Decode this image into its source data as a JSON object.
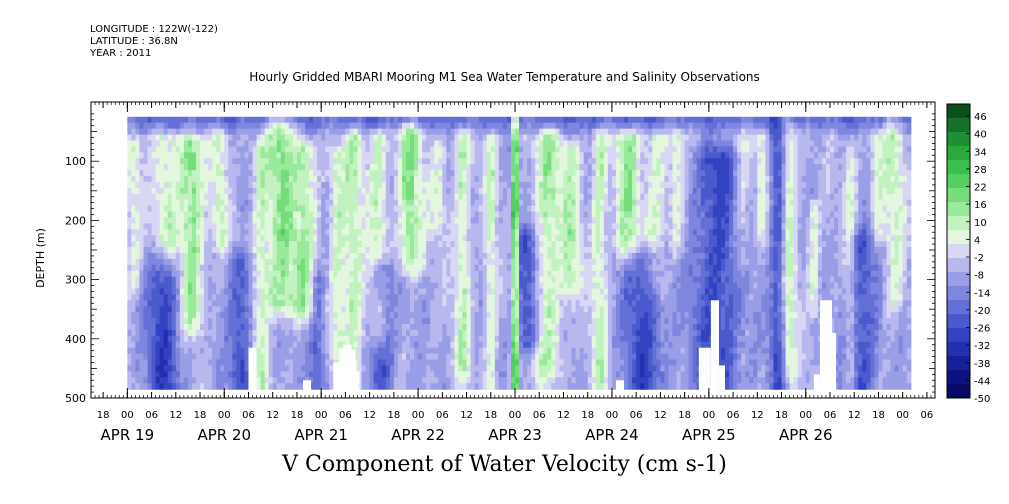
{
  "header": {
    "longitude": "LONGITUDE : 122W(-122)",
    "latitude": "LATITUDE : 36.8N",
    "year": "YEAR : 2011",
    "title": "Hourly Gridded MBARI Mooring M1 Sea Water Temperature and Salinity Observations"
  },
  "chart_data": {
    "type": "heatmap",
    "title": "Hourly Gridded MBARI Mooring M1 Sea Water Temperature and Salinity Observations",
    "xlabel": "V Component of Water Velocity (cm s-1)",
    "ylabel": "DEPTH (m)",
    "x_unit": "hours since APR 19 00",
    "xlim": [
      -9,
      200
    ],
    "data_xlim": [
      0,
      194
    ],
    "ylim": [
      0,
      500
    ],
    "data_ylim": [
      25,
      485
    ],
    "y_ticks": [
      100,
      200,
      300,
      400,
      500
    ],
    "x_tick_labels": [
      {
        "h": -6,
        "label": "18"
      },
      {
        "h": 0,
        "label": "00"
      },
      {
        "h": 6,
        "label": "06"
      },
      {
        "h": 12,
        "label": "12"
      },
      {
        "h": 18,
        "label": "18"
      },
      {
        "h": 24,
        "label": "00"
      },
      {
        "h": 30,
        "label": "06"
      },
      {
        "h": 36,
        "label": "12"
      },
      {
        "h": 42,
        "label": "18"
      },
      {
        "h": 48,
        "label": "00"
      },
      {
        "h": 54,
        "label": "06"
      },
      {
        "h": 60,
        "label": "12"
      },
      {
        "h": 66,
        "label": "18"
      },
      {
        "h": 72,
        "label": "00"
      },
      {
        "h": 78,
        "label": "06"
      },
      {
        "h": 84,
        "label": "12"
      },
      {
        "h": 90,
        "label": "18"
      },
      {
        "h": 96,
        "label": "00"
      },
      {
        "h": 102,
        "label": "06"
      },
      {
        "h": 108,
        "label": "12"
      },
      {
        "h": 114,
        "label": "18"
      },
      {
        "h": 120,
        "label": "00"
      },
      {
        "h": 126,
        "label": "06"
      },
      {
        "h": 132,
        "label": "12"
      },
      {
        "h": 138,
        "label": "18"
      },
      {
        "h": 144,
        "label": "00"
      },
      {
        "h": 150,
        "label": "06"
      },
      {
        "h": 156,
        "label": "12"
      },
      {
        "h": 162,
        "label": "18"
      },
      {
        "h": 168,
        "label": "00"
      },
      {
        "h": 174,
        "label": "06"
      },
      {
        "h": 180,
        "label": "12"
      },
      {
        "h": 186,
        "label": "18"
      },
      {
        "h": 192,
        "label": "00"
      },
      {
        "h": 198,
        "label": "06"
      }
    ],
    "x_tick_labels_override": [
      {
        "h": 162,
        "label": "18"
      },
      {
        "h": 168,
        "label": "00"
      },
      {
        "h": 174,
        "label": "06"
      },
      {
        "h": 180,
        "label": "12"
      }
    ],
    "date_labels": [
      {
        "h": 0,
        "label": "APR 19"
      },
      {
        "h": 24,
        "label": "APR 20"
      },
      {
        "h": 48,
        "label": "APR 21"
      },
      {
        "h": 72,
        "label": "APR 22"
      },
      {
        "h": 96,
        "label": "APR 23"
      },
      {
        "h": 120,
        "label": "APR 24"
      },
      {
        "h": 144,
        "label": "APR 25"
      },
      {
        "h": 168,
        "label": "APR 26"
      }
    ],
    "colorbar": {
      "min": -50,
      "max": 50,
      "labels": [
        "46",
        "40",
        "34",
        "28",
        "22",
        "16",
        "10",
        "4",
        "-2",
        "-8",
        "-14",
        "-20",
        "-26",
        "-32",
        "-38",
        "-44",
        "-50"
      ],
      "colors": [
        "#0b4f1c",
        "#16702a",
        "#1f8f35",
        "#2aaa3d",
        "#3cbe4c",
        "#56cf62",
        "#76dd7c",
        "#9ae99c",
        "#c2f2c0",
        "#e3f7df",
        "#d8d8f4",
        "#b8b8ee",
        "#9a9ee6",
        "#7e86de",
        "#6470d6",
        "#4a5acc",
        "#3242c0",
        "#2230ae",
        "#16209a",
        "#0c1282",
        "#060a66"
      ]
    },
    "green_bands": [
      {
        "h": 1.5,
        "w": 2.0,
        "amp": 12,
        "top": 80,
        "bottom": 300
      },
      {
        "h": 10,
        "w": 3.5,
        "amp": 14,
        "top": 60,
        "bottom": 260
      },
      {
        "h": 16,
        "w": 3.0,
        "amp": 22,
        "top": 70,
        "bottom": 360
      },
      {
        "h": 23,
        "w": 2.0,
        "amp": 14,
        "top": 60,
        "bottom": 220
      },
      {
        "h": 33,
        "w": 2.0,
        "amp": 14,
        "top": 80,
        "bottom": 480
      },
      {
        "h": 38,
        "w": 3.5,
        "amp": 22,
        "top": 40,
        "bottom": 330
      },
      {
        "h": 44,
        "w": 3.0,
        "amp": 18,
        "top": 80,
        "bottom": 340
      },
      {
        "h": 52,
        "w": 2.0,
        "amp": 14,
        "top": 90,
        "bottom": 420
      },
      {
        "h": 56,
        "w": 2.5,
        "amp": 16,
        "top": 60,
        "bottom": 460
      },
      {
        "h": 62,
        "w": 2.5,
        "amp": 16,
        "top": 60,
        "bottom": 380
      },
      {
        "h": 70,
        "w": 3.0,
        "amp": 22,
        "top": 50,
        "bottom": 260
      },
      {
        "h": 77,
        "w": 2.0,
        "amp": 12,
        "top": 80,
        "bottom": 200
      },
      {
        "h": 83,
        "w": 2.0,
        "amp": 16,
        "top": 60,
        "bottom": 440
      },
      {
        "h": 90,
        "w": 1.5,
        "amp": 14,
        "top": 70,
        "bottom": 480
      },
      {
        "h": 96,
        "w": 0.7,
        "amp": 46,
        "top": 30,
        "bottom": 485
      },
      {
        "h": 104,
        "w": 3.5,
        "amp": 18,
        "top": 60,
        "bottom": 440
      },
      {
        "h": 110,
        "w": 2.5,
        "amp": 16,
        "top": 80,
        "bottom": 300
      },
      {
        "h": 117,
        "w": 2.0,
        "amp": 16,
        "top": 60,
        "bottom": 480
      },
      {
        "h": 124,
        "w": 3.0,
        "amp": 20,
        "top": 60,
        "bottom": 240
      },
      {
        "h": 131,
        "w": 2.5,
        "amp": 14,
        "top": 60,
        "bottom": 300
      },
      {
        "h": 136,
        "w": 2.0,
        "amp": 12,
        "top": 60,
        "bottom": 230
      },
      {
        "h": 152,
        "w": 2.0,
        "amp": 12,
        "top": 60,
        "bottom": 260
      },
      {
        "h": 157,
        "w": 1.5,
        "amp": 12,
        "top": 60,
        "bottom": 200
      },
      {
        "h": 164,
        "w": 1.8,
        "amp": 16,
        "top": 40,
        "bottom": 450
      },
      {
        "h": 170,
        "w": 1.5,
        "amp": 12,
        "top": 180,
        "bottom": 330
      },
      {
        "h": 179,
        "w": 1.5,
        "amp": 12,
        "top": 80,
        "bottom": 460
      },
      {
        "h": 186,
        "w": 2.0,
        "amp": 12,
        "top": 60,
        "bottom": 220
      },
      {
        "h": 190,
        "w": 2.5,
        "amp": 14,
        "top": 40,
        "bottom": 330
      }
    ],
    "blue_patches": [
      {
        "h": 9,
        "w": 4,
        "amp": -22,
        "top": 280,
        "bottom": 485
      },
      {
        "h": 28,
        "w": 3,
        "amp": -18,
        "top": 280,
        "bottom": 485
      },
      {
        "h": 47,
        "w": 2,
        "amp": -16,
        "top": 310,
        "bottom": 485
      },
      {
        "h": 63,
        "w": 3,
        "amp": -18,
        "top": 290,
        "bottom": 470
      },
      {
        "h": 99,
        "w": 3,
        "amp": -20,
        "top": 240,
        "bottom": 400
      },
      {
        "h": 128,
        "w": 5,
        "amp": -20,
        "top": 270,
        "bottom": 485
      },
      {
        "h": 146,
        "w": 6,
        "amp": -20,
        "top": 100,
        "bottom": 485
      },
      {
        "h": 161,
        "w": 2,
        "amp": -18,
        "top": 60,
        "bottom": 480
      },
      {
        "h": 182,
        "w": 4,
        "amp": -18,
        "top": 240,
        "bottom": 485
      }
    ],
    "missing_blocks": [
      {
        "h0": 30,
        "h1": 32,
        "d0": 415,
        "d1": 485
      },
      {
        "h0": 43.5,
        "h1": 45.5,
        "d0": 470,
        "d1": 485
      },
      {
        "h0": 51,
        "h1": 53,
        "d0": 440,
        "d1": 485
      },
      {
        "h0": 52.5,
        "h1": 56.5,
        "d0": 418,
        "d1": 485
      },
      {
        "h0": 53.5,
        "h1": 55.5,
        "d0": 410,
        "d1": 485
      },
      {
        "h0": 56.5,
        "h1": 57.5,
        "d0": 455,
        "d1": 485
      },
      {
        "h0": 121,
        "h1": 123,
        "d0": 470,
        "d1": 485
      },
      {
        "h0": 141.5,
        "h1": 144.5,
        "d0": 415,
        "d1": 485
      },
      {
        "h0": 144.5,
        "h1": 146.5,
        "d0": 335,
        "d1": 485
      },
      {
        "h0": 146.5,
        "h1": 148,
        "d0": 445,
        "d1": 485
      },
      {
        "h0": 170,
        "h1": 171.5,
        "d0": 460,
        "d1": 485
      },
      {
        "h0": 171.5,
        "h1": 174.5,
        "d0": 335,
        "d1": 485
      },
      {
        "h0": 174.5,
        "h1": 175.5,
        "d0": 390,
        "d1": 485
      }
    ]
  }
}
